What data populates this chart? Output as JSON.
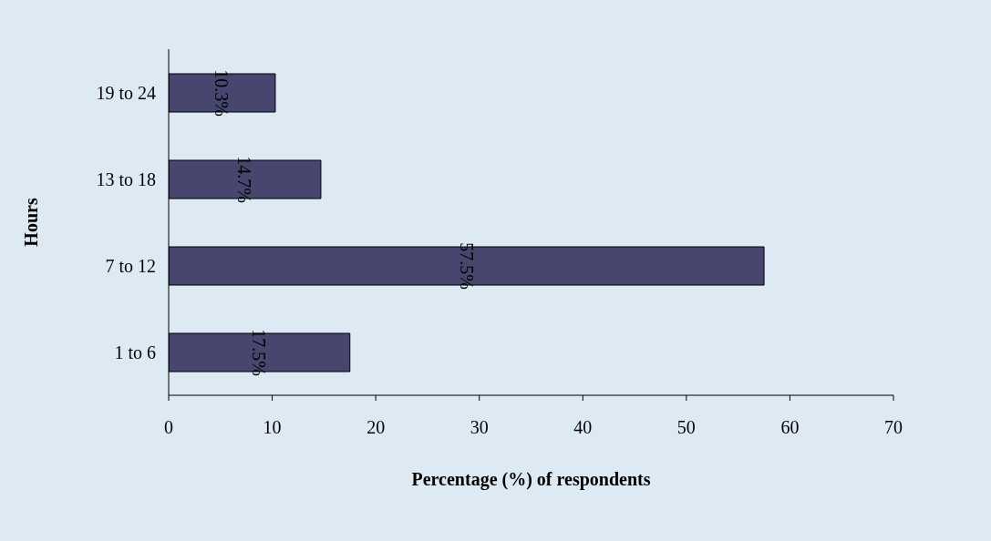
{
  "chart_data": {
    "type": "bar",
    "orientation": "horizontal",
    "ylabel": "Hours",
    "xlabel": "Percentage (%) of respondents",
    "categories": [
      "19 to 24",
      "13 to 18",
      "7 to 12",
      "1 to 6"
    ],
    "values": [
      10.3,
      14.7,
      57.5,
      17.5
    ],
    "value_labels": [
      "10.3%",
      "14.7%",
      "57.5%",
      "17.5%"
    ],
    "color": "#47466f",
    "xlim": [
      0,
      70
    ],
    "xticks": [
      0,
      10,
      20,
      30,
      40,
      50,
      60,
      70
    ],
    "grid": false
  }
}
